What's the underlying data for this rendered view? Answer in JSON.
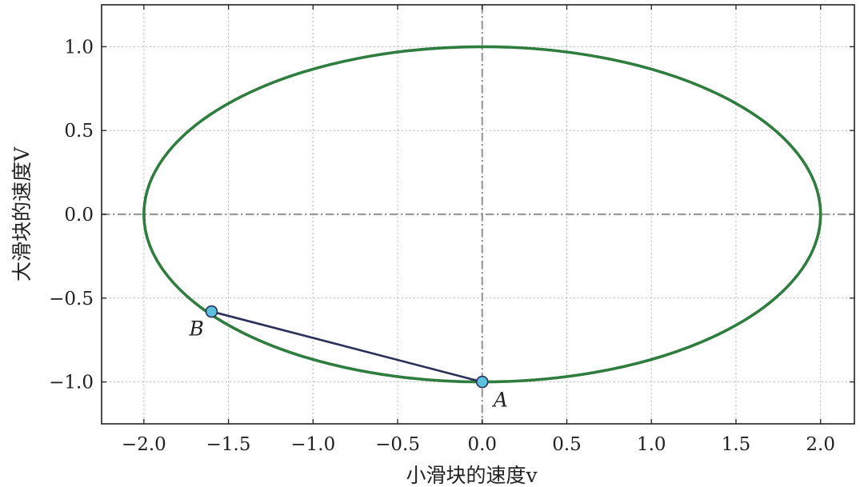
{
  "chart_data": {
    "type": "line",
    "xlabel": "小滑块的速度v",
    "ylabel": "大滑块的速度V",
    "xlim": [
      -2.25,
      2.2
    ],
    "ylim": [
      -1.25,
      1.25
    ],
    "x_ticks": [
      -2.0,
      -1.5,
      -1.0,
      -0.5,
      0.0,
      0.5,
      1.0,
      1.5,
      2.0
    ],
    "x_tick_labels": [
      "−2.0",
      "−1.5",
      "−1.0",
      "−0.5",
      "0.0",
      "0.5",
      "1.0",
      "1.5",
      "2.0"
    ],
    "y_ticks": [
      1.0,
      0.5,
      0.0,
      -0.5,
      -1.0
    ],
    "y_tick_labels": [
      "1.0",
      "0.5",
      "0.0",
      "−0.5",
      "−1.0"
    ],
    "grid": true,
    "ellipse": {
      "center": [
        0,
        0
      ],
      "semi_axis_x": 2.0,
      "semi_axis_y": 1.0,
      "color": "#2e7d3e"
    },
    "segment": {
      "from": "A",
      "to": "B",
      "color": "#2b2f5a"
    },
    "points": [
      {
        "label": "A",
        "x": 0.0,
        "y": -1.0
      },
      {
        "label": "B",
        "x": -1.6,
        "y": -0.58
      }
    ],
    "point_color": "#5bc0de",
    "reference_lines": {
      "x": 0.0,
      "y": 0.0,
      "color": "#999999"
    }
  }
}
